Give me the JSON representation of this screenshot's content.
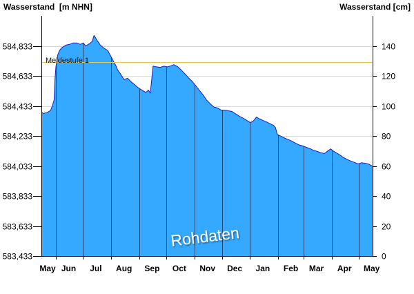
{
  "chart_data": {
    "type": "area",
    "x_tick_labels": [
      "May",
      "Jun",
      "Jul",
      "Aug",
      "Sep",
      "Oct",
      "Nov",
      "Dec",
      "Jan",
      "Feb",
      "Mar",
      "Apr",
      "May"
    ],
    "y_left": {
      "label": "Wasserstand  [m NHN]",
      "tick_labels": [
        "583,433",
        "583,633",
        "583,833",
        "584,033",
        "584,233",
        "584,433",
        "584,633",
        "584,833"
      ]
    },
    "y_right": {
      "label": "Wasserstand [cm]",
      "tick_labels": [
        "0",
        "20",
        "40",
        "60",
        "80",
        "100",
        "120",
        "140"
      ]
    },
    "y_ticks": [
      0,
      20,
      40,
      60,
      80,
      100,
      120,
      140
    ],
    "ylim": [
      0,
      160
    ],
    "grid": true,
    "series": [
      {
        "points": [
          [
            "05-16",
            96
          ],
          [
            "05-18",
            95
          ],
          [
            "05-22",
            95.5
          ],
          [
            "05-26",
            97
          ],
          [
            "05-28",
            100
          ],
          [
            "05-30",
            104
          ],
          [
            "05-31",
            118
          ],
          [
            "06-01",
            126
          ],
          [
            "06-02",
            130
          ],
          [
            "06-03",
            134
          ],
          [
            "06-05",
            137
          ],
          [
            "06-08",
            139
          ],
          [
            "06-12",
            140.5
          ],
          [
            "06-16",
            141
          ],
          [
            "06-20",
            142
          ],
          [
            "06-24",
            142
          ],
          [
            "06-28",
            141
          ],
          [
            "07-01",
            142
          ],
          [
            "07-04",
            140
          ],
          [
            "07-08",
            141.5
          ],
          [
            "07-11",
            143
          ],
          [
            "07-13",
            147
          ],
          [
            "07-16",
            144
          ],
          [
            "07-20",
            140.5
          ],
          [
            "07-24",
            138.5
          ],
          [
            "07-28",
            137
          ],
          [
            "08-01",
            132.5
          ],
          [
            "08-04",
            129
          ],
          [
            "08-06",
            127
          ],
          [
            "08-08",
            124
          ],
          [
            "08-11",
            121.5
          ],
          [
            "08-15",
            117.5
          ],
          [
            "08-19",
            118.5
          ],
          [
            "08-23",
            116
          ],
          [
            "08-27",
            114
          ],
          [
            "08-31",
            112
          ],
          [
            "09-04",
            110.5
          ],
          [
            "09-08",
            109
          ],
          [
            "09-11",
            110.5
          ],
          [
            "09-13",
            108.5
          ],
          [
            "09-15",
            120
          ],
          [
            "09-16",
            126.5
          ],
          [
            "09-20",
            126
          ],
          [
            "09-24",
            125.7
          ],
          [
            "09-28",
            126.5
          ],
          [
            "10-02",
            126
          ],
          [
            "10-06",
            126.8
          ],
          [
            "10-09",
            127.5
          ],
          [
            "10-13",
            126.2
          ],
          [
            "10-17",
            124
          ],
          [
            "10-21",
            121.5
          ],
          [
            "10-25",
            118.8
          ],
          [
            "10-29",
            116.5
          ],
          [
            "11-02",
            113.5
          ],
          [
            "11-06",
            110.5
          ],
          [
            "11-10",
            107.5
          ],
          [
            "11-14",
            104
          ],
          [
            "11-18",
            101.5
          ],
          [
            "11-22",
            99.3
          ],
          [
            "11-26",
            98.7
          ],
          [
            "11-30",
            97.3
          ],
          [
            "12-04",
            97.2
          ],
          [
            "12-08",
            96.8
          ],
          [
            "12-12",
            96.3
          ],
          [
            "12-16",
            94.8
          ],
          [
            "12-20",
            93.2
          ],
          [
            "12-24",
            92
          ],
          [
            "12-28",
            90.5
          ],
          [
            "01-01",
            89
          ],
          [
            "01-04",
            89.6
          ],
          [
            "01-06",
            91
          ],
          [
            "01-08",
            92.6
          ],
          [
            "01-11",
            91.5
          ],
          [
            "01-15",
            90.4
          ],
          [
            "01-19",
            89.4
          ],
          [
            "01-23",
            88.2
          ],
          [
            "01-27",
            87
          ],
          [
            "01-29",
            85.5
          ],
          [
            "01-31",
            81
          ],
          [
            "02-04",
            79.8
          ],
          [
            "02-08",
            78.6
          ],
          [
            "02-12",
            77.6
          ],
          [
            "02-16",
            76.6
          ],
          [
            "02-20",
            75.2
          ],
          [
            "02-24",
            74
          ],
          [
            "02-28",
            73.4
          ],
          [
            "03-04",
            72.4
          ],
          [
            "03-08",
            71.6
          ],
          [
            "03-12",
            70.4
          ],
          [
            "03-16",
            69.7
          ],
          [
            "03-20",
            68.8
          ],
          [
            "03-24",
            68.3
          ],
          [
            "03-28",
            70.2
          ],
          [
            "03-31",
            71.4
          ],
          [
            "04-02",
            70.2
          ],
          [
            "04-06",
            68.8
          ],
          [
            "04-10",
            67.3
          ],
          [
            "04-14",
            65.6
          ],
          [
            "04-18",
            64.3
          ],
          [
            "04-22",
            63.3
          ],
          [
            "04-26",
            62.4
          ],
          [
            "04-30",
            61.4
          ],
          [
            "05-04",
            62.2
          ],
          [
            "05-08",
            61.8
          ],
          [
            "05-12",
            61.2
          ],
          [
            "05-16",
            59.8
          ]
        ]
      }
    ],
    "reference_lines": [
      {
        "label": "Meldestufe 1",
        "y": 129
      }
    ],
    "watermark": "Rohdaten",
    "colors": {
      "fill": "#35a9ff",
      "line": "#1a1fb8",
      "reference": "#e8c64a",
      "month_divider": "#24477a",
      "grid": "#d9d9d9",
      "axis": "#000000"
    }
  }
}
